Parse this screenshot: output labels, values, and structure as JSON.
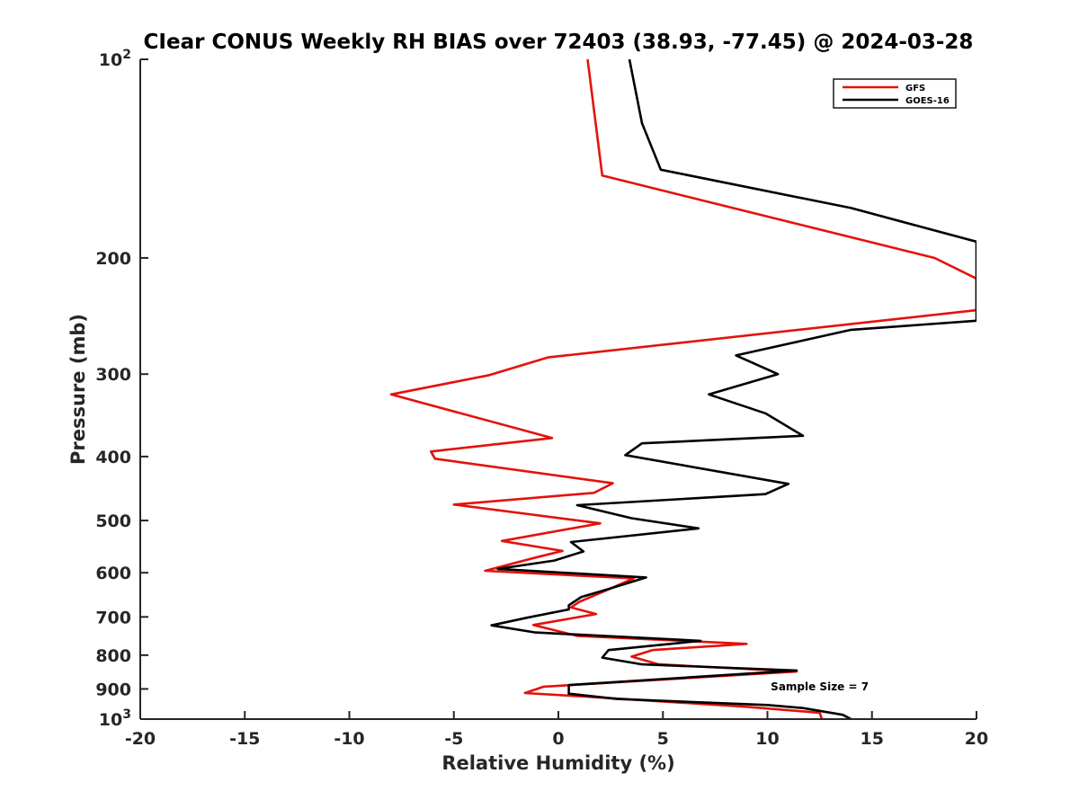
{
  "chart_data": {
    "type": "line",
    "title": "CIear CONUS Weekly RH BIAS over 72403 (38.93, -77.45) @ 2024-03-28",
    "xlabel": "Relative Humidity (%)",
    "ylabel": "Pressure (mb)",
    "xlim": [
      -20,
      20
    ],
    "ylim": [
      100,
      1000
    ],
    "y_scale": "log",
    "y_reversed": true,
    "grid": false,
    "legend_position": "top-right",
    "x_ticks": [
      {
        "value": -20,
        "label": "-20"
      },
      {
        "value": -15,
        "label": "-15"
      },
      {
        "value": -10,
        "label": "-10"
      },
      {
        "value": -5,
        "label": "-5"
      },
      {
        "value": 0,
        "label": "0"
      },
      {
        "value": 5,
        "label": "5"
      },
      {
        "value": 10,
        "label": "10"
      },
      {
        "value": 15,
        "label": "15"
      },
      {
        "value": 20,
        "label": "20"
      }
    ],
    "y_ticks": [
      {
        "value": 100,
        "base": "10",
        "exp": "2"
      },
      {
        "value": 200,
        "base": "200",
        "exp": ""
      },
      {
        "value": 300,
        "base": "300",
        "exp": ""
      },
      {
        "value": 400,
        "base": "400",
        "exp": ""
      },
      {
        "value": 500,
        "base": "500",
        "exp": ""
      },
      {
        "value": 600,
        "base": "600",
        "exp": ""
      },
      {
        "value": 700,
        "base": "700",
        "exp": ""
      },
      {
        "value": 800,
        "base": "800",
        "exp": ""
      },
      {
        "value": 900,
        "base": "900",
        "exp": ""
      },
      {
        "value": 1000,
        "base": "10",
        "exp": "3"
      }
    ],
    "series": [
      {
        "name": "GFS",
        "color": "#e3120b",
        "points": [
          {
            "x": 1.4,
            "y": 100
          },
          {
            "x": 2.1,
            "y": 150
          },
          {
            "x": 9.0,
            "y": 170
          },
          {
            "x": 18.0,
            "y": 200
          },
          {
            "x": 20.0,
            "y": 215
          },
          {
            "x": 20.0,
            "y": 240
          },
          {
            "x": -0.5,
            "y": 283
          },
          {
            "x": -3.3,
            "y": 301
          },
          {
            "x": -8.0,
            "y": 322
          },
          {
            "x": -0.3,
            "y": 375
          },
          {
            "x": -6.1,
            "y": 393
          },
          {
            "x": -5.9,
            "y": 403
          },
          {
            "x": 2.6,
            "y": 439
          },
          {
            "x": 1.7,
            "y": 454
          },
          {
            "x": -5.0,
            "y": 473
          },
          {
            "x": 2.0,
            "y": 505
          },
          {
            "x": -2.7,
            "y": 537
          },
          {
            "x": 0.2,
            "y": 556
          },
          {
            "x": -1.1,
            "y": 569
          },
          {
            "x": -3.5,
            "y": 596
          },
          {
            "x": 3.6,
            "y": 612
          },
          {
            "x": 2.2,
            "y": 640
          },
          {
            "x": 1.0,
            "y": 664
          },
          {
            "x": 0.6,
            "y": 677
          },
          {
            "x": 1.8,
            "y": 693
          },
          {
            "x": -1.2,
            "y": 720
          },
          {
            "x": 0.9,
            "y": 748
          },
          {
            "x": 9.0,
            "y": 769
          },
          {
            "x": 4.5,
            "y": 786
          },
          {
            "x": 3.5,
            "y": 804
          },
          {
            "x": 4.8,
            "y": 826
          },
          {
            "x": 11.4,
            "y": 847
          },
          {
            "x": -0.7,
            "y": 893
          },
          {
            "x": -1.6,
            "y": 913
          },
          {
            "x": 1.4,
            "y": 925
          },
          {
            "x": 9.0,
            "y": 958
          },
          {
            "x": 12.5,
            "y": 978
          },
          {
            "x": 12.6,
            "y": 1000
          }
        ]
      },
      {
        "name": "GOES-16",
        "color": "#000000",
        "points": [
          {
            "x": 3.4,
            "y": 100
          },
          {
            "x": 4.0,
            "y": 125
          },
          {
            "x": 4.9,
            "y": 147
          },
          {
            "x": 14.0,
            "y": 168
          },
          {
            "x": 20.0,
            "y": 189
          },
          {
            "x": 20.0,
            "y": 249
          },
          {
            "x": 14.0,
            "y": 257
          },
          {
            "x": 8.5,
            "y": 281
          },
          {
            "x": 10.5,
            "y": 300
          },
          {
            "x": 7.2,
            "y": 322
          },
          {
            "x": 9.9,
            "y": 344
          },
          {
            "x": 11.7,
            "y": 372
          },
          {
            "x": 4.0,
            "y": 382
          },
          {
            "x": 3.2,
            "y": 398
          },
          {
            "x": 11.0,
            "y": 440
          },
          {
            "x": 9.9,
            "y": 456
          },
          {
            "x": 0.9,
            "y": 474
          },
          {
            "x": 3.5,
            "y": 496
          },
          {
            "x": 6.7,
            "y": 514
          },
          {
            "x": 0.6,
            "y": 539
          },
          {
            "x": 1.2,
            "y": 557
          },
          {
            "x": -0.2,
            "y": 575
          },
          {
            "x": -2.9,
            "y": 592
          },
          {
            "x": 4.2,
            "y": 610
          },
          {
            "x": 2.4,
            "y": 635
          },
          {
            "x": 1.1,
            "y": 653
          },
          {
            "x": 0.5,
            "y": 672
          },
          {
            "x": 0.5,
            "y": 682
          },
          {
            "x": -1.5,
            "y": 702
          },
          {
            "x": -3.2,
            "y": 721
          },
          {
            "x": -1.1,
            "y": 739
          },
          {
            "x": 6.8,
            "y": 761
          },
          {
            "x": 2.4,
            "y": 786
          },
          {
            "x": 2.1,
            "y": 807
          },
          {
            "x": 4.0,
            "y": 826
          },
          {
            "x": 11.4,
            "y": 844
          },
          {
            "x": 0.5,
            "y": 888
          },
          {
            "x": 0.5,
            "y": 915
          },
          {
            "x": 2.8,
            "y": 932
          },
          {
            "x": 10.0,
            "y": 952
          },
          {
            "x": 11.7,
            "y": 962
          },
          {
            "x": 13.6,
            "y": 985
          },
          {
            "x": 14.0,
            "y": 1000
          }
        ]
      }
    ],
    "annotations": [
      {
        "text": "Sample Size = 7",
        "x": 12.5,
        "y": 905
      }
    ]
  }
}
